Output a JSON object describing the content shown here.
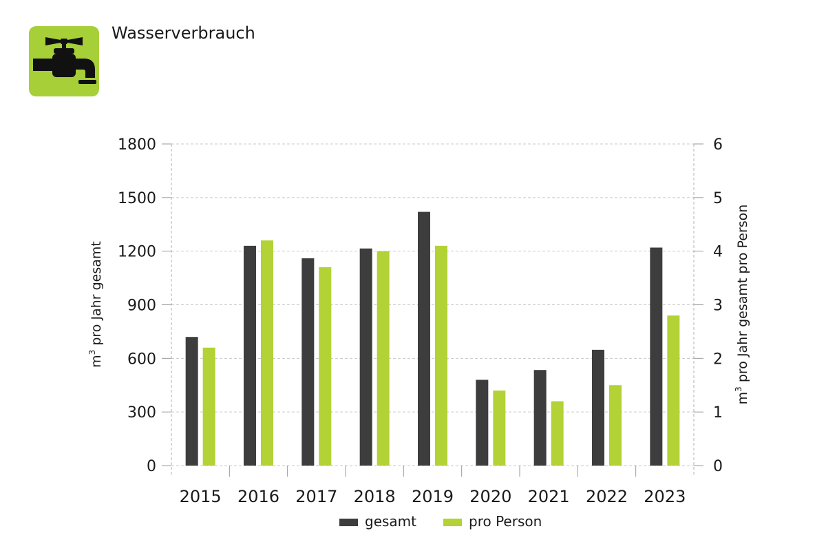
{
  "header": {
    "title": "Wasserverbrauch",
    "icon": "water-tap-icon",
    "icon_bg_color": "#a6cf38",
    "icon_fg_color": "#111111"
  },
  "chart_data": {
    "type": "bar",
    "categories": [
      "2015",
      "2016",
      "2017",
      "2018",
      "2019",
      "2020",
      "2021",
      "2022",
      "2023"
    ],
    "series": [
      {
        "name": "gesamt",
        "axis": "left",
        "color": "#3d3d3d",
        "values": [
          720,
          1230,
          1160,
          1215,
          1420,
          480,
          535,
          648,
          1220
        ]
      },
      {
        "name": "pro Person",
        "axis": "right",
        "color": "#b2d235",
        "values": [
          2.2,
          4.2,
          3.7,
          4.0,
          4.1,
          1.4,
          1.2,
          1.5,
          2.8
        ]
      }
    ],
    "ylabel_prefix": "m",
    "ylabel_sup": "3",
    "ylabel_rest": " pro Jahr gesamt",
    "y2label_prefix": "m",
    "y2label_sup": "3",
    "y2label_rest": " pro Jahr gesamt pro Person",
    "ylim": [
      0,
      1800
    ],
    "yticks": [
      "0",
      "300",
      "600",
      "900",
      "1200",
      "1500",
      "1800"
    ],
    "y2lim": [
      0,
      6
    ],
    "y2ticks": [
      "0",
      "1",
      "2",
      "3",
      "4",
      "5",
      "6"
    ],
    "grid": true,
    "legend_position": "bottom-center",
    "legend": [
      "gesamt",
      "pro Person"
    ]
  }
}
